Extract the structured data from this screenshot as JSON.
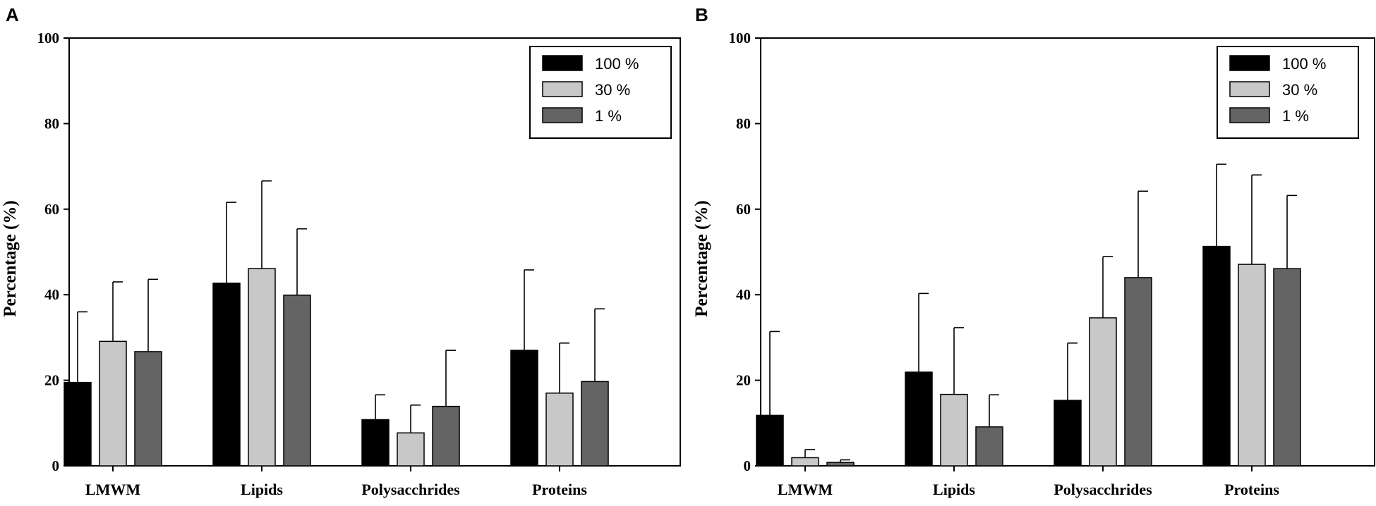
{
  "chart_data": [
    {
      "panel": "A",
      "type": "bar",
      "ylabel": "Percentage (%)",
      "ylim": [
        0,
        100
      ],
      "yticks": [
        "0",
        "20",
        "40",
        "60",
        "80",
        "100"
      ],
      "categories": [
        "LMWM",
        "Lipids",
        "Polysacchrides",
        "Proteins"
      ],
      "series": [
        {
          "name": "100 %",
          "color": "#000000",
          "values": [
            19.5,
            42.7,
            10.8,
            27.0
          ],
          "errors": [
            16.5,
            18.9,
            5.8,
            18.8
          ]
        },
        {
          "name": "30 %",
          "color": "#c8c8c8",
          "values": [
            29.1,
            46.1,
            7.7,
            17.0
          ],
          "errors": [
            13.9,
            20.5,
            6.5,
            11.7
          ]
        },
        {
          "name": "1 %",
          "color": "#646464",
          "values": [
            26.7,
            39.9,
            13.9,
            19.7
          ],
          "errors": [
            16.9,
            15.5,
            13.1,
            17.0
          ]
        }
      ],
      "legend": "top-right"
    },
    {
      "panel": "B",
      "type": "bar",
      "ylabel": "Percentage (%)",
      "ylim": [
        0,
        100
      ],
      "yticks": [
        "0",
        "20",
        "40",
        "60",
        "80",
        "100"
      ],
      "categories": [
        "LMWM",
        "Lipids",
        "Polysacchrides",
        "Proteins"
      ],
      "series": [
        {
          "name": "100 %",
          "color": "#000000",
          "values": [
            11.8,
            21.9,
            15.3,
            51.3
          ],
          "errors": [
            19.6,
            18.4,
            13.4,
            19.2
          ]
        },
        {
          "name": "30 %",
          "color": "#c8c8c8",
          "values": [
            1.9,
            16.7,
            34.6,
            47.1
          ],
          "errors": [
            1.9,
            15.6,
            14.3,
            20.9
          ]
        },
        {
          "name": "1 %",
          "color": "#646464",
          "values": [
            0.8,
            9.1,
            44.0,
            46.1
          ],
          "errors": [
            0.6,
            7.5,
            20.2,
            17.1
          ]
        }
      ],
      "legend": "top-right"
    }
  ]
}
